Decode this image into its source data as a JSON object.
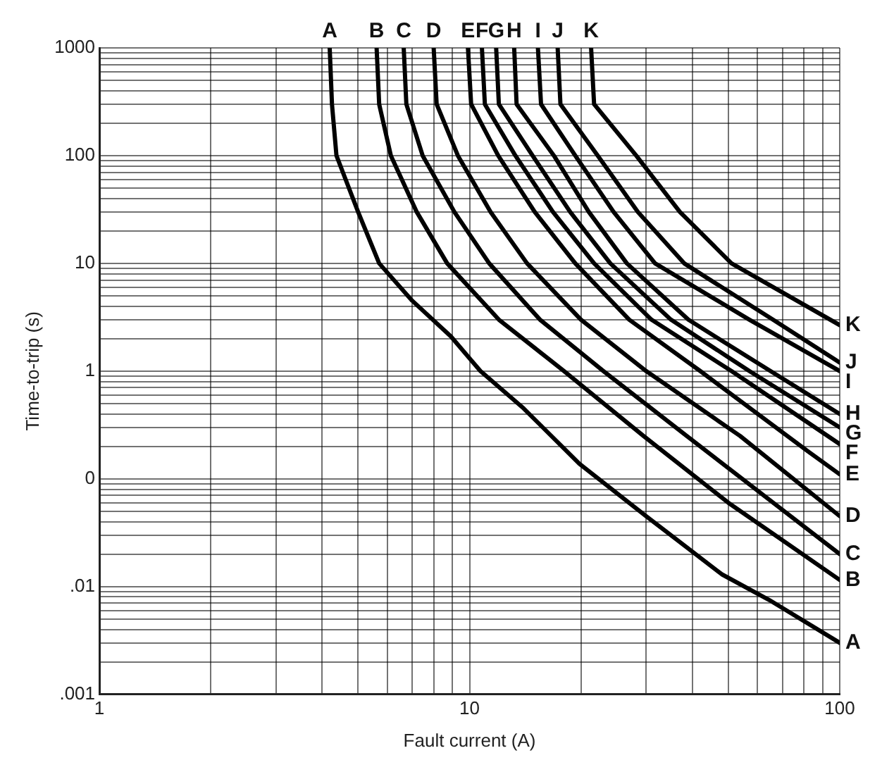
{
  "chart_data": {
    "type": "line",
    "xlabel": "Fault current (A)",
    "ylabel": "Time-to-trip (s)",
    "log": "xy",
    "grid": true,
    "legend": false,
    "marker": "none",
    "line_style": "solid",
    "xlim": [
      1,
      100
    ],
    "xticks": [
      1,
      {
        "value": 2,
        "label": null
      },
      {
        "value": 3,
        "label": null
      },
      {
        "value": 4,
        "label": null
      },
      {
        "value": 5,
        "label": null
      },
      {
        "value": 6,
        "label": null
      },
      {
        "value": 7,
        "label": null
      },
      {
        "value": 8,
        "label": null
      },
      {
        "value": 9,
        "label": null
      },
      10,
      {
        "value": 20,
        "label": null
      },
      {
        "value": 30,
        "label": null
      },
      {
        "value": 40,
        "label": null
      },
      {
        "value": 50,
        "label": null
      },
      {
        "value": 60,
        "label": null
      },
      {
        "value": 70,
        "label": null
      },
      {
        "value": 80,
        "label": null
      },
      {
        "value": 90,
        "label": null
      },
      100
    ],
    "ylim": [
      0.001,
      1000
    ],
    "yticks": [
      {
        "value": 0.001,
        "label": ".001"
      },
      {
        "value": 0.002,
        "label": null
      },
      {
        "value": 0.003,
        "label": null
      },
      {
        "value": 0.004,
        "label": null
      },
      {
        "value": 0.005,
        "label": null
      },
      {
        "value": 0.006,
        "label": null
      },
      {
        "value": 0.007,
        "label": null
      },
      {
        "value": 0.008,
        "label": null
      },
      {
        "value": 0.009,
        "label": null
      },
      {
        "value": 0.01,
        "label": ".01"
      },
      {
        "value": 0.02,
        "label": null
      },
      {
        "value": 0.03,
        "label": null
      },
      {
        "value": 0.04,
        "label": null
      },
      {
        "value": 0.05,
        "label": null
      },
      {
        "value": 0.06,
        "label": null
      },
      {
        "value": 0.07,
        "label": null
      },
      {
        "value": 0.08,
        "label": null
      },
      {
        "value": 0.09,
        "label": null
      },
      {
        "value": 0.1,
        "label": "0"
      },
      {
        "value": 0.2,
        "label": null
      },
      {
        "value": 0.3,
        "label": null
      },
      {
        "value": 0.4,
        "label": null
      },
      {
        "value": 0.5,
        "label": null
      },
      {
        "value": 0.6,
        "label": null
      },
      {
        "value": 0.7,
        "label": null
      },
      {
        "value": 0.8,
        "label": null
      },
      {
        "value": 0.9,
        "label": null
      },
      1,
      {
        "value": 2,
        "label": null
      },
      {
        "value": 3,
        "label": null
      },
      {
        "value": 4,
        "label": null
      },
      {
        "value": 5,
        "label": null
      },
      {
        "value": 6,
        "label": null
      },
      {
        "value": 7,
        "label": null
      },
      {
        "value": 8,
        "label": null
      },
      {
        "value": 9,
        "label": null
      },
      10,
      {
        "value": 20,
        "label": null
      },
      {
        "value": 30,
        "label": null
      },
      {
        "value": 40,
        "label": null
      },
      {
        "value": 50,
        "label": null
      },
      {
        "value": 60,
        "label": null
      },
      {
        "value": 70,
        "label": null
      },
      {
        "value": 80,
        "label": null
      },
      {
        "value": 90,
        "label": null
      },
      100,
      {
        "value": 200,
        "label": null
      },
      {
        "value": 300,
        "label": null
      },
      {
        "value": 400,
        "label": null
      },
      {
        "value": 500,
        "label": null
      },
      {
        "value": 600,
        "label": null
      },
      {
        "value": 700,
        "label": null
      },
      {
        "value": 800,
        "label": null
      },
      {
        "value": 900,
        "label": null
      },
      1000
    ],
    "series": [
      {
        "name": "A",
        "color": "#000000",
        "x": [
          4.19,
          4.25,
          4.37,
          5.0,
          5.7,
          7.0,
          8.9,
          10.7,
          14,
          19.8,
          30,
          48,
          64.5,
          100
        ],
        "values": [
          1000,
          300,
          100,
          30,
          10,
          4.5,
          2.1,
          1.0,
          0.45,
          0.138,
          0.045,
          0.013,
          0.0075,
          0.003
        ]
      },
      {
        "name": "B",
        "color": "#000000",
        "x": [
          5.61,
          5.7,
          6.13,
          7.2,
          8.7,
          12,
          18,
          29.5,
          50,
          100
        ],
        "values": [
          1000,
          300,
          100,
          30,
          10,
          3,
          1,
          0.25,
          0.06,
          0.0115
        ]
      },
      {
        "name": "C",
        "color": "#000000",
        "x": [
          6.64,
          6.75,
          7.47,
          9.1,
          11.3,
          15.5,
          23,
          38.6,
          100
        ],
        "values": [
          1000,
          300,
          100,
          30,
          10,
          3,
          1,
          0.25,
          0.02
        ]
      },
      {
        "name": "D",
        "color": "#000000",
        "x": [
          8.0,
          8.15,
          9.3,
          11.4,
          14.3,
          20,
          30,
          53.8,
          100
        ],
        "values": [
          1000,
          300,
          100,
          30,
          10,
          3,
          1,
          0.25,
          0.045
        ]
      },
      {
        "name": "E",
        "color": "#000000",
        "x": [
          9.9,
          10.1,
          11.95,
          15,
          19.3,
          27,
          42,
          82,
          100
        ],
        "values": [
          1000,
          300,
          100,
          30,
          10,
          3,
          1,
          0.18,
          0.11
        ]
      },
      {
        "name": "F",
        "color": "#000000",
        "x": [
          10.8,
          11,
          13.3,
          16.8,
          21.7,
          31,
          51,
          100
        ],
        "values": [
          1000,
          300,
          100,
          30,
          10,
          3,
          1,
          0.21
        ]
      },
      {
        "name": "G",
        "color": "#000000",
        "x": [
          11.8,
          12,
          14.8,
          18.7,
          24,
          35,
          57,
          100
        ],
        "values": [
          1000,
          300,
          100,
          30,
          10,
          3,
          1,
          0.3
        ]
      },
      {
        "name": "H",
        "color": "#000000",
        "x": [
          13.2,
          13.4,
          16.9,
          21,
          26.6,
          39,
          65,
          100
        ],
        "values": [
          1000,
          300,
          100,
          30,
          10,
          3,
          1,
          0.4
        ]
      },
      {
        "name": "I",
        "color": "#000000",
        "x": [
          15.3,
          15.6,
          19.3,
          24.5,
          31.7,
          57,
          100
        ],
        "values": [
          1000,
          300,
          100,
          30,
          10,
          3,
          1.0
        ]
      },
      {
        "name": "J",
        "color": "#000000",
        "x": [
          17.3,
          17.6,
          22.2,
          28.5,
          38,
          66,
          100
        ],
        "values": [
          1000,
          300,
          100,
          30,
          10,
          3,
          1.2
        ]
      },
      {
        "name": "K",
        "color": "#000000",
        "x": [
          21.3,
          21.7,
          28.2,
          37,
          51,
          100
        ],
        "values": [
          1000,
          300,
          100,
          30,
          10,
          2.67
        ]
      }
    ]
  }
}
